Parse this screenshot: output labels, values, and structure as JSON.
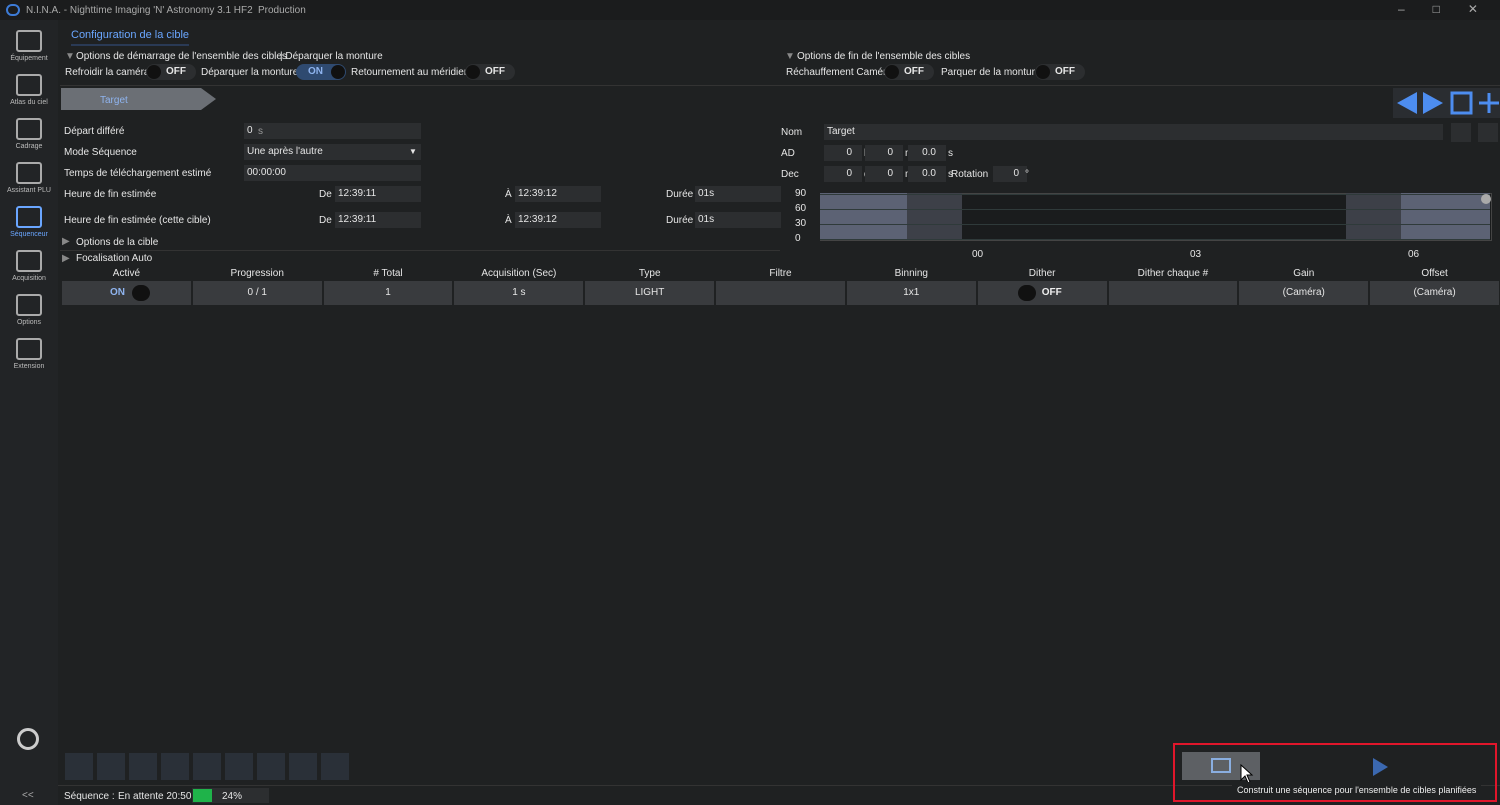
{
  "window": {
    "title": "N.I.N.A. - Nighttime Imaging 'N' Astronomy 3.1 HF2",
    "profile": "Production"
  },
  "sidebar": {
    "items": [
      "Équipement",
      "Atlas du ciel",
      "Cadrage",
      "Assistant PLU",
      "Séquenceur",
      "Acquisition",
      "Options",
      "Extension"
    ],
    "active": 4,
    "collapse": "<<"
  },
  "tab": "Configuration de la cible",
  "start_options": {
    "header": "Options de démarrage de l'ensemble des cibles",
    "summary": "| Déparquer la monture",
    "toggles": [
      {
        "label": "Refroidir la caméra",
        "state": "OFF"
      },
      {
        "label": "Déparquer la monture",
        "state": "ON"
      },
      {
        "label": "Retournement au méridien",
        "state": "OFF"
      }
    ]
  },
  "end_options": {
    "header": "Options de fin de l'ensemble des cibles",
    "toggles": [
      {
        "label": "Réchauffement Caméra",
        "state": "OFF"
      },
      {
        "label": "Parquer de la monture",
        "state": "OFF"
      }
    ]
  },
  "target_tab": "Target",
  "form": {
    "delay": {
      "label": "Départ différé",
      "value": "0",
      "unit": "s"
    },
    "mode": {
      "label": "Mode Séquence",
      "value": "Une après l'autre"
    },
    "download": {
      "label": "Temps de téléchargement estimé",
      "value": "00:00:00"
    },
    "end_rows": [
      {
        "label": "Heure de fin estimée",
        "from_label": "De",
        "from": "12:39:11",
        "to_label": "À",
        "to": "12:39:12",
        "dur_label": "Durée",
        "dur": "01s"
      },
      {
        "label": "Heure de fin estimée (cette cible)",
        "from_label": "De",
        "from": "12:39:11",
        "to_label": "À",
        "to": "12:39:12",
        "dur_label": "Durée",
        "dur": "01s"
      }
    ]
  },
  "coords": {
    "name": {
      "label": "Nom",
      "value": "Target"
    },
    "ra": {
      "label": "AD",
      "parts": [
        {
          "value": "0",
          "unit": "h"
        },
        {
          "value": "0",
          "unit": "m"
        },
        {
          "value": "0.0",
          "unit": "s"
        }
      ]
    },
    "dec": {
      "label": "Dec",
      "parts": [
        {
          "value": "0",
          "unit": "d"
        },
        {
          "value": "0",
          "unit": "m"
        },
        {
          "value": "0.0",
          "unit": "s"
        }
      ]
    },
    "rotation": {
      "label": "Rotation",
      "value": "0",
      "unit": "°"
    }
  },
  "altitude_chart": {
    "yticks": [
      "90",
      "60",
      "30",
      "0"
    ],
    "xticks": [
      "00",
      "03",
      "06"
    ]
  },
  "sections": [
    "Options de la cible",
    "Focalisation Auto"
  ],
  "table": {
    "headers": [
      "Activé",
      "Progression",
      "# Total",
      "Acquisition (Sec)",
      "Type",
      "Filtre",
      "Binning",
      "Dither",
      "Dither chaque #",
      "Gain",
      "Offset"
    ],
    "rows": [
      [
        "ON",
        "0 / 1",
        "1",
        "1 s",
        "LIGHT",
        null,
        "1x1",
        "OFF",
        null,
        "(Caméra)",
        "(Caméra)"
      ]
    ]
  },
  "status": {
    "label": "Séquence :",
    "state": "En attente 20:50",
    "progress": "24%"
  },
  "tooltip": "Construit une séquence pour l'ensemble de cibles planifiées"
}
